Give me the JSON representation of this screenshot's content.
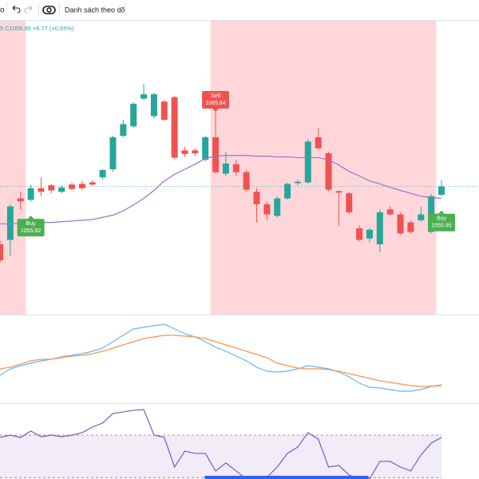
{
  "toolbar": {
    "symbol_fragment": "o",
    "watchlist": "Danh sách theo dõi"
  },
  "chart_data": [
    {
      "type": "candlestick",
      "legend": "5 C1055.95 +6.77 (+0.65%)",
      "ylim": [
        1038.35,
        1078.7
      ],
      "up_color": "#26a69a",
      "down_color": "#ef5350",
      "shade_color": "#ffcdd2",
      "open": [
        1048.0,
        1048.6,
        1054.3,
        1054.1,
        1055.7,
        1056.1,
        1055.2,
        1056.2,
        1056.3,
        1056.5,
        1057.2,
        1058.3,
        1062.9,
        1064.2,
        1068.0,
        1065.6,
        1067.6,
        1068.2,
        1060.9,
        1060.9,
        1059.6,
        1062.7,
        1057.7,
        1059.0,
        1057.9,
        1055.2,
        1053.5,
        1051.9,
        1054.3,
        1056.4,
        1056.5,
        1062.7,
        1060.5,
        1055.3,
        1055.0,
        1050.2,
        1048.8,
        1048.0,
        1052.8,
        1052.1,
        1051.0,
        1051.3,
        1049.7,
        1054.8
      ],
      "high": [
        1048.6,
        1053.5,
        1055.2,
        1056.1,
        1057.2,
        1056.3,
        1056.1,
        1056.5,
        1056.7,
        1056.8,
        1058.3,
        1062.9,
        1065.1,
        1067.5,
        1070.0,
        1068.8,
        1067.8,
        1068.4,
        1061.4,
        1061.2,
        1062.9,
        1066.2,
        1060.7,
        1059.6,
        1058.2,
        1055.7,
        1053.9,
        1054.6,
        1056.5,
        1056.9,
        1062.4,
        1064.0,
        1060.7,
        1055.4,
        1055.2,
        1050.6,
        1050.2,
        1052.8,
        1053.2,
        1052.4,
        1051.3,
        1053.2,
        1054.9,
        1056.8
      ],
      "low": [
        1045.5,
        1046.4,
        1052.8,
        1053.9,
        1054.6,
        1055.0,
        1055.0,
        1055.4,
        1055.4,
        1056.0,
        1056.9,
        1058.0,
        1062.7,
        1064.0,
        1067.8,
        1065.3,
        1064.9,
        1059.7,
        1060.0,
        1060.1,
        1059.4,
        1057.7,
        1057.4,
        1057.4,
        1055.2,
        1051.0,
        1051.3,
        1051.7,
        1054.1,
        1056.1,
        1056.3,
        1061.0,
        1055.3,
        1050.5,
        1052.1,
        1048.4,
        1048.3,
        1046.9,
        1051.9,
        1049.3,
        1049.5,
        1051.1,
        1049.5,
        1054.6
      ],
      "close": [
        1045.8,
        1053.2,
        1053.9,
        1055.7,
        1055.2,
        1055.4,
        1055.8,
        1055.6,
        1055.7,
        1056.2,
        1058.2,
        1062.7,
        1064.5,
        1067.3,
        1068.6,
        1068.6,
        1065.1,
        1059.9,
        1060.4,
        1060.5,
        1062.7,
        1057.9,
        1059.1,
        1057.9,
        1055.5,
        1053.5,
        1052.1,
        1054.3,
        1056.3,
        1056.6,
        1062.1,
        1061.2,
        1055.5,
        1055.1,
        1052.4,
        1048.6,
        1050.0,
        1052.4,
        1052.1,
        1049.5,
        1049.7,
        1052.1,
        1054.6,
        1055.95
      ],
      "series": [
        {
          "color": "#9575cd",
          "values": [
            1050.8,
            1050.8,
            1050.9,
            1050.9,
            1051.0,
            1051.0,
            1051.1,
            1051.2,
            1051.3,
            1051.4,
            1051.7,
            1052.0,
            1052.6,
            1053.4,
            1054.3,
            1055.4,
            1056.7,
            1057.6,
            1058.3,
            1059.0,
            1059.8,
            1060.1,
            1060.2,
            1060.2,
            1060.2,
            1060.1,
            1060.1,
            1060.0,
            1060.0,
            1059.9,
            1059.9,
            1059.9,
            1059.6,
            1058.9,
            1058.0,
            1057.4,
            1056.7,
            1056.3,
            1055.8,
            1055.4,
            1055.0,
            1054.6,
            1054.4,
            1054.3
          ]
        }
      ],
      "signals": [
        null,
        null,
        null,
        "Buy",
        null,
        null,
        null,
        null,
        null,
        null,
        null,
        null,
        null,
        null,
        null,
        null,
        null,
        null,
        null,
        null,
        null,
        "Sell",
        null,
        null,
        null,
        null,
        null,
        null,
        null,
        null,
        null,
        null,
        null,
        null,
        null,
        null,
        null,
        null,
        null,
        null,
        null,
        null,
        null,
        "Buy"
      ],
      "signal_prices": [
        null,
        null,
        null,
        1055.82,
        null,
        null,
        null,
        null,
        null,
        null,
        null,
        null,
        null,
        null,
        null,
        null,
        null,
        null,
        null,
        null,
        null,
        1065.84,
        null,
        null,
        null,
        null,
        null,
        null,
        null,
        null,
        null,
        null,
        null,
        null,
        null,
        null,
        null,
        null,
        null,
        null,
        null,
        null,
        null,
        1055.95
      ]
    },
    {
      "type": "line",
      "ylim": [
        -5.5,
        5.5
      ],
      "series": [
        {
          "color": "#64b5f6",
          "values": [
            -2,
            -1.2,
            -0.8,
            -0.5,
            -0.2,
            0,
            0.3,
            0.5,
            0.7,
            1,
            1.4,
            2.2,
            3,
            3.8,
            4,
            4.2,
            4.4,
            3.8,
            3.2,
            2.8,
            2.2,
            1.5,
            1,
            0.4,
            -0.2,
            -1,
            -1.5,
            -1.6,
            -1.5,
            -1.2,
            -0.8,
            -1,
            -1.2,
            -1.6,
            -2.2,
            -3,
            -3.5,
            -3.6,
            -3.8,
            -4,
            -4,
            -3.8,
            -3.4,
            -3.2
          ]
        },
        {
          "color": "#ff9151",
          "values": [
            -1.2,
            -1,
            -0.6,
            -0.2,
            0,
            0,
            0.2,
            0.4,
            0.5,
            0.7,
            1,
            1.4,
            1.8,
            2.2,
            2.6,
            2.8,
            3,
            3,
            2.9,
            2.8,
            2.6,
            2.2,
            1.8,
            1.4,
            1,
            0.6,
            0.2,
            -0.5,
            -0.8,
            -1.1,
            -1.2,
            -1.2,
            -1.3,
            -1.5,
            -1.8,
            -2.1,
            -2.4,
            -2.7,
            -2.9,
            -3.1,
            -3.3,
            -3.4,
            -3.4,
            -3.3
          ]
        }
      ]
    },
    {
      "type": "line",
      "ylim": [
        28.75,
        100
      ],
      "levels": [
        70,
        30
      ],
      "band_color": "#ede7f6",
      "series": [
        {
          "color": "#7e57c2",
          "values": [
            67.8,
            70,
            67.8,
            73.8,
            68.5,
            70,
            68.5,
            70,
            72.3,
            77.5,
            81.3,
            90.3,
            91.8,
            93.3,
            94,
            70,
            67.8,
            40,
            55,
            52.8,
            52.8,
            36.3,
            43.8,
            36.3,
            28.8,
            28.8,
            30.3,
            40,
            52.8,
            58.8,
            72.3,
            66.3,
            40,
            41.5,
            32.5,
            28.8,
            28.8,
            45.3,
            45.3,
            40,
            36.3,
            51.3,
            62.5,
            67.8
          ]
        }
      ]
    }
  ]
}
